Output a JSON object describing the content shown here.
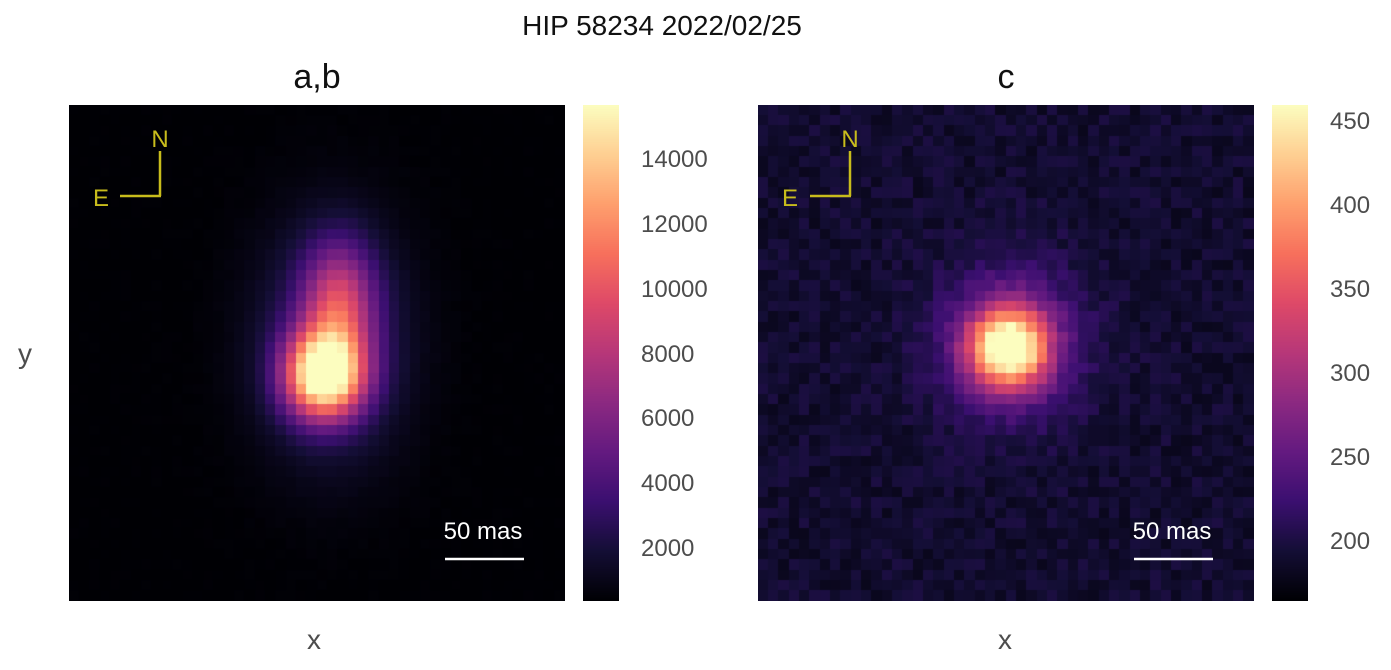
{
  "title": "HIP 58234 2022/02/25",
  "ylabel": "y",
  "chart_data": [
    {
      "type": "heatmap",
      "title": "a,b",
      "xlabel": "x",
      "ylabel": "y",
      "colormap": "magma",
      "compass": {
        "north": "N",
        "east": "E"
      },
      "scale_bar_label": "50 mas",
      "colorbar": {
        "range": [
          400,
          15700
        ],
        "ticks": [
          2000,
          4000,
          6000,
          8000,
          10000,
          12000,
          14000
        ],
        "tick_labels": [
          "2000",
          "4000",
          "6000",
          "8000",
          "10000",
          "12000",
          "14000"
        ]
      },
      "sources": [
        {
          "label": "a",
          "peak": 15700
        },
        {
          "label": "b",
          "peak": 11000
        }
      ]
    },
    {
      "type": "heatmap",
      "title": "c",
      "xlabel": "x",
      "colormap": "magma",
      "compass": {
        "north": "N",
        "east": "E"
      },
      "scale_bar_label": "50 mas",
      "colorbar": {
        "range": [
          165,
          460
        ],
        "ticks": [
          200,
          250,
          300,
          350,
          400,
          450
        ],
        "tick_labels": [
          "200",
          "250",
          "300",
          "350",
          "400",
          "450"
        ]
      },
      "sources": [
        {
          "label": "c",
          "peak": 460
        }
      ]
    }
  ]
}
